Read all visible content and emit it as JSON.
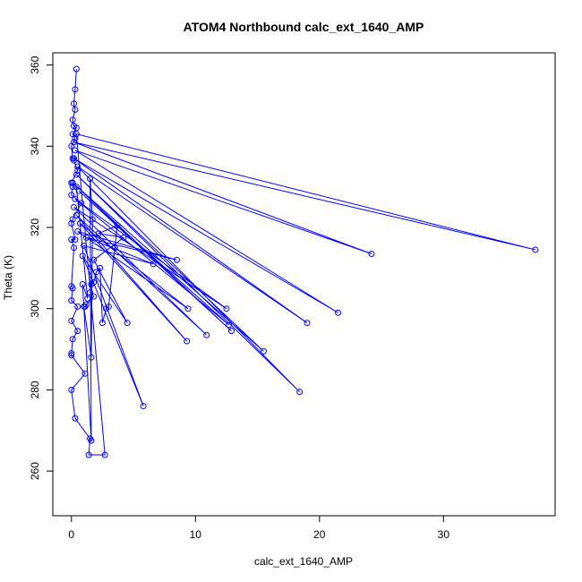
{
  "chart_data": {
    "type": "line",
    "title": "ATOM4 Northbound calc_ext_1640_AMP",
    "xlabel": "calc_ext_1640_AMP",
    "ylabel": "Theta (K)",
    "xlim": [
      -1.5,
      39.0
    ],
    "ylim": [
      249.0,
      363.0
    ],
    "xticks": [
      0,
      10,
      20,
      30
    ],
    "yticks": [
      260,
      280,
      300,
      320,
      340,
      360
    ],
    "grid": false,
    "legend": "none",
    "series": [
      {
        "color": "#0000ff",
        "markers": "open-circle",
        "points": [
          [
            0.4,
            359.0
          ],
          [
            0.3,
            354.0
          ],
          [
            0.2,
            350.5
          ],
          [
            0.3,
            349.0
          ],
          [
            0.1,
            346.5
          ],
          [
            0.2,
            345.0
          ],
          [
            0.4,
            344.5
          ],
          [
            0.1,
            343.0
          ],
          [
            0.3,
            342.0
          ],
          [
            0.0,
            340.0
          ],
          [
            0.1,
            337.0
          ],
          [
            0.2,
            336.5
          ],
          [
            0.5,
            334.0
          ],
          [
            0.0,
            331.0
          ],
          [
            0.1,
            330.0
          ],
          [
            0.0,
            328.0
          ],
          [
            0.8,
            326.0
          ],
          [
            0.1,
            322.0
          ],
          [
            0.0,
            321.0
          ],
          [
            0.3,
            317.0
          ],
          [
            0.0,
            317.0
          ],
          [
            0.2,
            315.0
          ],
          [
            0.0,
            305.5
          ],
          [
            0.1,
            305.0
          ],
          [
            0.0,
            302.0
          ],
          [
            0.5,
            300.5
          ],
          [
            0.0,
            297.0
          ],
          [
            0.5,
            294.5
          ],
          [
            0.1,
            292.5
          ],
          [
            0.0,
            289.0
          ],
          [
            0.0,
            288.5
          ],
          [
            1.1,
            284.0
          ],
          [
            0.0,
            280.0
          ],
          [
            0.3,
            273.0
          ],
          [
            1.5,
            268.0
          ],
          [
            1.4,
            264.0
          ],
          [
            2.7,
            264.0
          ],
          [
            0.4,
            343.0
          ],
          [
            37.4,
            314.5
          ],
          [
            0.2,
            341.0
          ],
          [
            24.2,
            313.5
          ],
          [
            0.3,
            339.0
          ],
          [
            21.5,
            299.0
          ],
          [
            0.2,
            337.0
          ],
          [
            19.0,
            296.5
          ],
          [
            0.5,
            335.0
          ],
          [
            18.4,
            279.5
          ],
          [
            0.4,
            333.0
          ],
          [
            15.5,
            289.5
          ],
          [
            0.1,
            331.0
          ],
          [
            12.9,
            294.5
          ],
          [
            0.6,
            329.0
          ],
          [
            12.7,
            296.0
          ],
          [
            0.3,
            327.0
          ],
          [
            12.5,
            300.0
          ],
          [
            0.2,
            325.0
          ],
          [
            10.9,
            293.5
          ],
          [
            0.4,
            323.0
          ],
          [
            9.3,
            292.0
          ],
          [
            0.7,
            321.0
          ],
          [
            9.4,
            300.0
          ],
          [
            0.5,
            319.0
          ],
          [
            8.5,
            312.0
          ],
          [
            1.2,
            317.5
          ],
          [
            6.6,
            311.0
          ],
          [
            1.0,
            315.5
          ],
          [
            5.8,
            276.0
          ],
          [
            0.9,
            313.0
          ],
          [
            4.5,
            296.5
          ],
          [
            1.8,
            312.0
          ],
          [
            4.2,
            317.5
          ],
          [
            2.2,
            318.5
          ],
          [
            3.7,
            320.5
          ],
          [
            3.5,
            315.0
          ],
          [
            3.0,
            300.5
          ],
          [
            2.8,
            300.0
          ],
          [
            2.5,
            296.5
          ],
          [
            2.3,
            310.0
          ],
          [
            2.0,
            309.0
          ],
          [
            1.8,
            306.5
          ],
          [
            1.6,
            306.0
          ],
          [
            1.5,
            304.0
          ],
          [
            1.8,
            303.0
          ],
          [
            1.2,
            301.0
          ],
          [
            1.1,
            300.5
          ],
          [
            1.0,
            300.5
          ],
          [
            1.6,
            288.0
          ],
          [
            1.7,
            322.0
          ],
          [
            1.5,
            332.0
          ],
          [
            1.6,
            267.5
          ],
          [
            0.9,
            306.0
          ],
          [
            1.3,
            302.5
          ],
          [
            0.4,
            330.0
          ]
        ]
      }
    ]
  }
}
